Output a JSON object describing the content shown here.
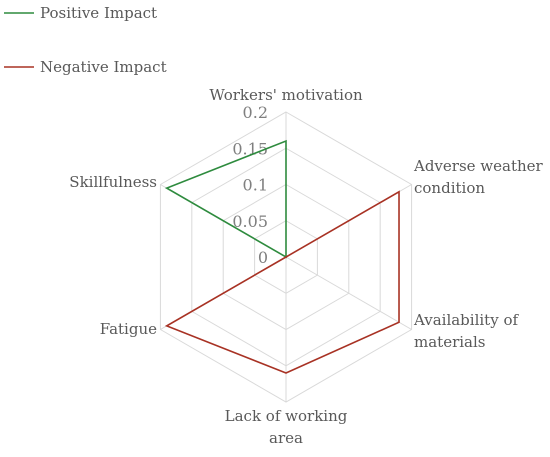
{
  "chart_data": {
    "type": "radar",
    "axes": [
      [
        "Workers' motivation"
      ],
      [
        "Adverse weather",
        "condition"
      ],
      [
        "Availability of",
        "materials"
      ],
      [
        "Lack of working",
        "area"
      ],
      [
        "Fatigue"
      ],
      [
        "Skillfulness"
      ]
    ],
    "ticks": [
      "0",
      "0.05",
      "0.1",
      "0.15",
      "0.2"
    ],
    "rmin": 0,
    "rmax": 0.2,
    "grid": true,
    "legend_position": "top-left",
    "series": [
      {
        "name": "Positive Impact",
        "color": "#2e8b3e",
        "values": [
          0.16,
          0,
          0,
          0,
          0,
          0.19
        ]
      },
      {
        "name": "Negative Impact",
        "color": "#a83224",
        "values": [
          0,
          0.18,
          0.18,
          0.16,
          0.19,
          0
        ]
      }
    ]
  }
}
